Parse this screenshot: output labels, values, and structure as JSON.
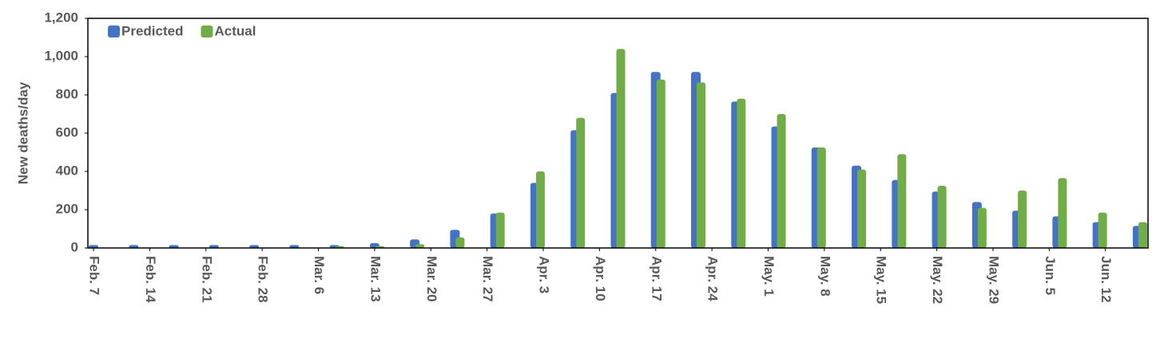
{
  "chart_data": {
    "type": "bar",
    "ylabel": "New deaths/day",
    "x": [
      0,
      5,
      10,
      15,
      20,
      25,
      30,
      35,
      40,
      45,
      50,
      55,
      60,
      65,
      70,
      75,
      80,
      85,
      90,
      95,
      100,
      105,
      110,
      115,
      120,
      125,
      130
    ],
    "series": [
      {
        "name": "Predicted",
        "color": "#4472c4",
        "values": [
          15,
          15,
          15,
          15,
          15,
          15,
          15,
          25,
          45,
          95,
          180,
          340,
          615,
          810,
          920,
          920,
          765,
          635,
          525,
          430,
          355,
          295,
          240,
          195,
          165,
          135,
          115
        ]
      },
      {
        "name": "Actual",
        "color": "#70ad47",
        "values": [
          0,
          0,
          0,
          0,
          0,
          0,
          10,
          10,
          20,
          55,
          185,
          400,
          680,
          1040,
          880,
          865,
          780,
          700,
          525,
          410,
          490,
          325,
          210,
          300,
          365,
          185,
          135
        ]
      }
    ],
    "xlim": [
      -0.7,
      131.3
    ],
    "xticks": [
      {
        "value": 0,
        "label": "Feb. 7"
      },
      {
        "value": 7,
        "label": "Feb. 14"
      },
      {
        "value": 14,
        "label": "Feb. 21"
      },
      {
        "value": 21,
        "label": "Feb. 28"
      },
      {
        "value": 28,
        "label": "Mar. 6"
      },
      {
        "value": 35,
        "label": "Mar. 13"
      },
      {
        "value": 42,
        "label": "Mar. 20"
      },
      {
        "value": 49,
        "label": "Mar. 27"
      },
      {
        "value": 56,
        "label": "Apr. 3"
      },
      {
        "value": 63,
        "label": "Apr. 10"
      },
      {
        "value": 70,
        "label": "Apr. 17"
      },
      {
        "value": 77,
        "label": "Apr. 24"
      },
      {
        "value": 84,
        "label": "May. 1"
      },
      {
        "value": 91,
        "label": "May. 8"
      },
      {
        "value": 98,
        "label": "May. 15"
      },
      {
        "value": 105,
        "label": "May. 22"
      },
      {
        "value": 112,
        "label": "May. 29"
      },
      {
        "value": 119,
        "label": "Jun. 5"
      },
      {
        "value": 126,
        "label": "Jun. 12"
      }
    ],
    "ylim": [
      0,
      1200
    ],
    "yticks": [
      0,
      200,
      400,
      600,
      800,
      {
        "value": 1000,
        "label": "1,000"
      },
      {
        "value": 1200,
        "label": "1,200"
      }
    ],
    "legend": "top-left"
  }
}
